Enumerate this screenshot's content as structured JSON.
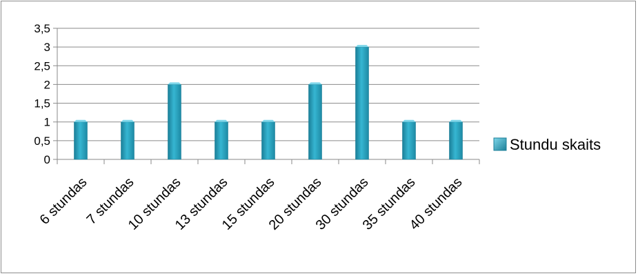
{
  "chart_data": {
    "type": "bar",
    "categories": [
      "6 stundas",
      "7 stundas",
      "10 stundas",
      "13 stundas",
      "15 stundas",
      "20 stundas",
      "30 stundas",
      "35 stundas",
      "40 stundas"
    ],
    "series": [
      {
        "name": "Stundu skaits",
        "values": [
          1,
          1,
          2,
          1,
          1,
          2,
          3,
          1,
          1
        ]
      }
    ],
    "ylim": [
      0,
      3.5
    ],
    "yticks": [
      "0",
      "0,5",
      "1",
      "1,5",
      "2",
      "2,5",
      "3",
      "3,5"
    ],
    "ytick_values": [
      0,
      0.5,
      1,
      1.5,
      2,
      2.5,
      3,
      3.5
    ],
    "grid": true,
    "legend_position": "right",
    "colors": {
      "bar": "#2aa7c4",
      "bar_dark": "#1b7f98",
      "bar_top": "#7fd7ea",
      "grid": "#8a8a8a"
    }
  }
}
